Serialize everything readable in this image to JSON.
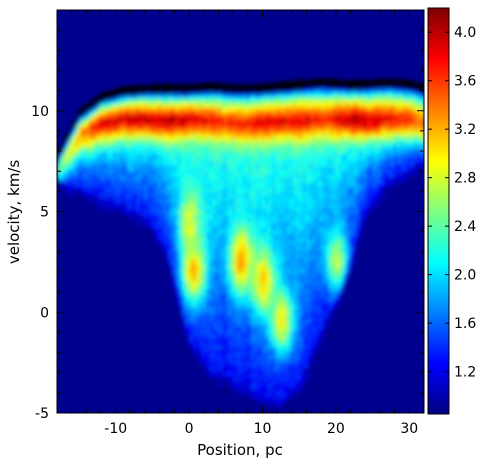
{
  "chart_data": {
    "type": "heatmap",
    "xlabel": "Position, pc",
    "ylabel": "velocity, km/s",
    "xlim": [
      -18,
      32
    ],
    "ylim": [
      -5,
      15
    ],
    "x_ticks": [
      -10,
      0,
      10,
      20,
      30
    ],
    "y_ticks": [
      -5,
      0,
      5,
      10
    ],
    "colorbar": {
      "ticks": [
        1.2,
        1.6,
        2.0,
        2.4,
        2.8,
        3.2,
        3.6,
        4.0
      ],
      "range": [
        0.85,
        4.2
      ],
      "colormap": "jet"
    },
    "background_color": "#00008f",
    "emission_band": {
      "description_units": "km/s vs pc",
      "x": [
        -18,
        -15,
        -12,
        -9,
        -6,
        -3,
        0,
        3,
        6,
        9,
        12,
        15,
        18,
        21,
        24,
        27,
        30,
        32
      ],
      "upper_edge": [
        7.5,
        9.6,
        10.4,
        10.7,
        10.8,
        10.8,
        10.8,
        10.9,
        10.8,
        10.8,
        10.9,
        11.0,
        11.1,
        11.0,
        11.0,
        11.1,
        11.0,
        10.8
      ],
      "ridge_center": [
        7.2,
        8.9,
        9.4,
        9.6,
        9.6,
        9.5,
        9.6,
        9.5,
        9.4,
        9.4,
        9.5,
        9.5,
        9.6,
        9.6,
        9.5,
        9.6,
        9.6,
        9.4
      ],
      "ridge_peak_value": [
        2.4,
        3.3,
        3.9,
        3.9,
        4.0,
        4.0,
        3.9,
        3.8,
        3.7,
        3.8,
        3.9,
        3.9,
        3.7,
        4.0,
        4.0,
        3.8,
        3.7,
        3.4
      ],
      "lower_edge": [
        6.5,
        6.0,
        5.6,
        5.2,
        4.6,
        3.0,
        -1.5,
        -3.0,
        -3.5,
        -4.0,
        -4.6,
        -3.5,
        -1.0,
        2.0,
        5.0,
        6.5,
        7.0,
        7.5
      ]
    },
    "bright_blobs": [
      {
        "x": 0.5,
        "y": 2.0,
        "value": 3.2
      },
      {
        "x": 7.0,
        "y": 2.5,
        "value": 3.3
      },
      {
        "x": 10.0,
        "y": 1.5,
        "value": 3.1
      },
      {
        "x": 12.5,
        "y": -0.5,
        "value": 3.0
      },
      {
        "x": 0.0,
        "y": 4.5,
        "value": 2.8
      },
      {
        "x": 20.0,
        "y": 2.5,
        "value": 2.7
      }
    ]
  }
}
